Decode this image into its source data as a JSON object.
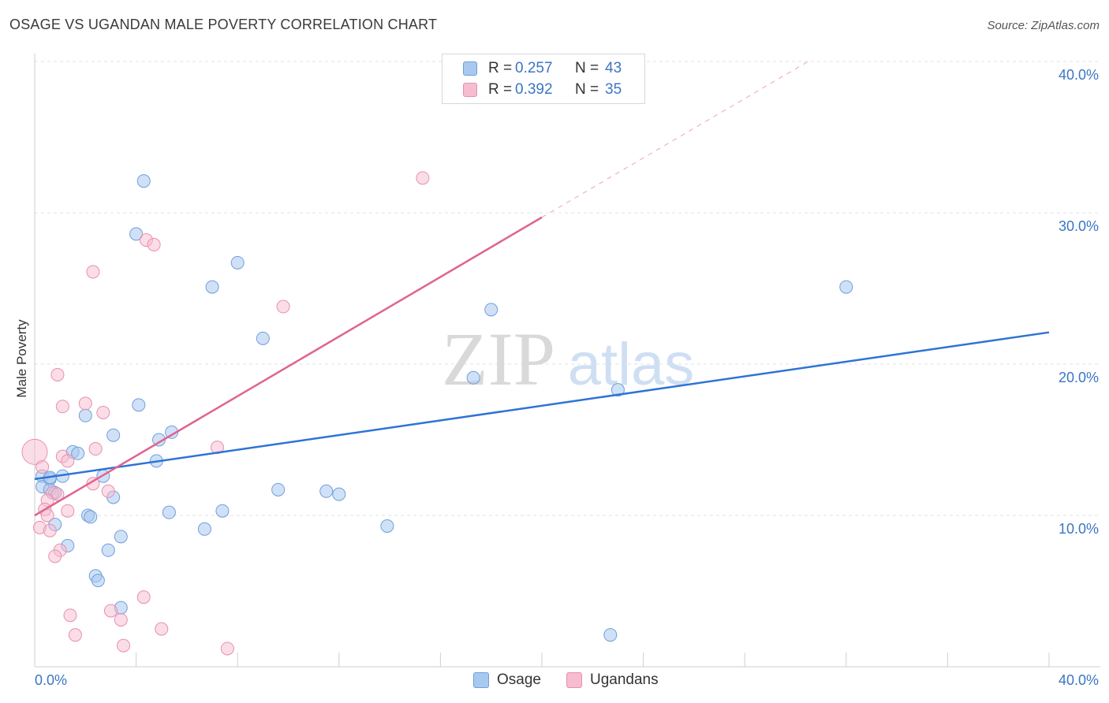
{
  "title": "OSAGE VS UGANDAN MALE POVERTY CORRELATION CHART",
  "source": "Source: ZipAtlas.com",
  "colors": {
    "osage_fill": "#a9c8f0",
    "osage_stroke": "#6d9fdb",
    "osage_line": "#2e74d4",
    "ugandan_fill": "#f6bcd0",
    "ugandan_stroke": "#e98fae",
    "ugandan_line": "#e0648f",
    "axis_text": "#3a76c4",
    "grid": "#e2e2e2"
  },
  "legend": {
    "r_label": "R =",
    "n_label": "N =",
    "series": [
      {
        "name": "Osage",
        "r": "0.257",
        "n": "43"
      },
      {
        "name": "Ugandans",
        "r": "0.392",
        "n": "35"
      }
    ]
  },
  "watermark": {
    "zip": "ZIP",
    "atlas": "atlas"
  },
  "chart_data": {
    "type": "scatter",
    "title": "OSAGE VS UGANDAN MALE POVERTY CORRELATION CHART",
    "xlabel": "",
    "ylabel": "Male Poverty",
    "xlim": [
      0,
      40
    ],
    "ylim": [
      0,
      40
    ],
    "x_tick_labels": [
      "0.0%",
      "40.0%"
    ],
    "y_ticks": [
      10,
      20,
      30,
      40
    ],
    "y_tick_labels": [
      "10.0%",
      "20.0%",
      "30.0%",
      "40.0%"
    ],
    "x_minor_ticks": [
      0,
      4,
      8,
      12,
      16,
      20,
      24,
      28,
      32,
      36,
      40
    ],
    "grid": true,
    "legend_position": "top-center",
    "series": [
      {
        "name": "Osage",
        "points": [
          [
            4.3,
            32.1
          ],
          [
            4.0,
            28.6
          ],
          [
            8.0,
            26.7
          ],
          [
            7.0,
            25.1
          ],
          [
            9.0,
            21.7
          ],
          [
            18.0,
            23.6
          ],
          [
            32.0,
            25.1
          ],
          [
            17.3,
            19.1
          ],
          [
            23.0,
            18.3
          ],
          [
            4.1,
            17.3
          ],
          [
            2.0,
            16.6
          ],
          [
            3.1,
            15.3
          ],
          [
            5.4,
            15.5
          ],
          [
            4.9,
            15.0
          ],
          [
            1.5,
            14.2
          ],
          [
            1.7,
            14.1
          ],
          [
            4.8,
            13.6
          ],
          [
            0.3,
            12.6
          ],
          [
            0.6,
            12.4
          ],
          [
            1.1,
            12.6
          ],
          [
            2.7,
            12.6
          ],
          [
            0.3,
            11.9
          ],
          [
            0.6,
            11.7
          ],
          [
            0.8,
            11.5
          ],
          [
            3.1,
            11.2
          ],
          [
            9.6,
            11.7
          ],
          [
            11.5,
            11.6
          ],
          [
            12.0,
            11.4
          ],
          [
            7.4,
            10.3
          ],
          [
            5.3,
            10.2
          ],
          [
            2.1,
            10.0
          ],
          [
            2.2,
            9.9
          ],
          [
            0.8,
            9.4
          ],
          [
            6.7,
            9.1
          ],
          [
            13.9,
            9.3
          ],
          [
            3.4,
            8.6
          ],
          [
            1.3,
            8.0
          ],
          [
            2.9,
            7.7
          ],
          [
            2.4,
            6.0
          ],
          [
            2.5,
            5.7
          ],
          [
            3.4,
            3.9
          ],
          [
            22.7,
            2.1
          ],
          [
            0.6,
            12.5
          ]
        ],
        "trendline": {
          "x": [
            0,
            40
          ],
          "y": [
            12.4,
            22.1
          ]
        }
      },
      {
        "name": "Ugandans",
        "points": [
          [
            15.3,
            32.3
          ],
          [
            4.4,
            28.2
          ],
          [
            4.7,
            27.9
          ],
          [
            2.3,
            26.1
          ],
          [
            9.8,
            23.8
          ],
          [
            0.9,
            19.3
          ],
          [
            2.0,
            17.4
          ],
          [
            1.1,
            17.2
          ],
          [
            2.7,
            16.8
          ],
          [
            0.0,
            14.2
          ],
          [
            7.2,
            14.5
          ],
          [
            2.4,
            14.4
          ],
          [
            1.1,
            13.9
          ],
          [
            1.3,
            13.6
          ],
          [
            0.3,
            13.2
          ],
          [
            2.3,
            12.1
          ],
          [
            2.9,
            11.6
          ],
          [
            0.7,
            11.5
          ],
          [
            0.9,
            11.4
          ],
          [
            0.5,
            11.0
          ],
          [
            1.3,
            10.3
          ],
          [
            0.4,
            10.4
          ],
          [
            0.5,
            10.0
          ],
          [
            0.2,
            9.2
          ],
          [
            0.6,
            9.0
          ],
          [
            1.0,
            7.7
          ],
          [
            0.8,
            7.3
          ],
          [
            1.4,
            3.4
          ],
          [
            3.0,
            3.7
          ],
          [
            3.4,
            3.1
          ],
          [
            5.0,
            2.5
          ],
          [
            1.6,
            2.1
          ],
          [
            3.5,
            1.4
          ],
          [
            7.6,
            1.2
          ],
          [
            4.3,
            4.6
          ]
        ],
        "trendline": {
          "x": [
            0,
            20
          ],
          "y": [
            10.0,
            29.7
          ]
        },
        "trendline_extended": {
          "x": [
            20,
            30.5
          ],
          "y": [
            29.7,
            40.0
          ]
        }
      }
    ]
  }
}
